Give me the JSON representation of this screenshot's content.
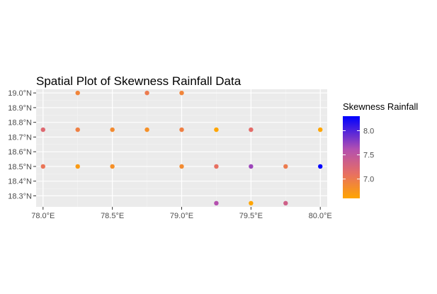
{
  "chart_data": {
    "type": "scatter",
    "title": "Spatial Plot of Skewness Rainfall Data",
    "xlabel": "",
    "ylabel": "",
    "x_ticks": [
      "78.0°E",
      "78.5°E",
      "79.0°E",
      "79.5°E",
      "80.0°E"
    ],
    "x_tick_values": [
      78.0,
      78.5,
      79.0,
      79.5,
      80.0
    ],
    "y_ticks": [
      "18.3°N",
      "18.4°N",
      "18.5°N",
      "18.6°N",
      "18.7°N",
      "18.8°N",
      "18.9°N",
      "19.0°N"
    ],
    "y_tick_values": [
      18.3,
      18.4,
      18.5,
      18.6,
      18.7,
      18.8,
      18.9,
      19.0
    ],
    "xlim": [
      77.95,
      80.05
    ],
    "ylim": [
      18.225,
      19.025
    ],
    "grid": true,
    "legend": {
      "title": "Skewness Rainfall",
      "position": "right",
      "ticks": [
        "8.0",
        "7.5",
        "7.0"
      ],
      "tick_values": [
        8.0,
        7.5,
        7.0
      ],
      "range": [
        6.6,
        8.3
      ],
      "colors": {
        "low": "#ffa500",
        "high": "#0000ff"
      }
    },
    "points": [
      {
        "x": 78.25,
        "y": 19.0,
        "value": 6.9
      },
      {
        "x": 78.75,
        "y": 19.0,
        "value": 7.0
      },
      {
        "x": 79.0,
        "y": 19.0,
        "value": 6.9
      },
      {
        "x": 78.0,
        "y": 18.75,
        "value": 7.2
      },
      {
        "x": 78.25,
        "y": 18.75,
        "value": 6.95
      },
      {
        "x": 78.5,
        "y": 18.75,
        "value": 6.85
      },
      {
        "x": 78.75,
        "y": 18.75,
        "value": 6.8
      },
      {
        "x": 79.0,
        "y": 18.75,
        "value": 6.95
      },
      {
        "x": 79.25,
        "y": 18.75,
        "value": 6.6
      },
      {
        "x": 79.5,
        "y": 18.75,
        "value": 7.15
      },
      {
        "x": 80.0,
        "y": 18.75,
        "value": 6.6
      },
      {
        "x": 78.0,
        "y": 18.5,
        "value": 7.05
      },
      {
        "x": 78.25,
        "y": 18.5,
        "value": 6.7
      },
      {
        "x": 78.5,
        "y": 18.5,
        "value": 6.8
      },
      {
        "x": 79.0,
        "y": 18.5,
        "value": 6.85
      },
      {
        "x": 79.25,
        "y": 18.5,
        "value": 7.1
      },
      {
        "x": 79.5,
        "y": 18.5,
        "value": 7.7
      },
      {
        "x": 79.75,
        "y": 18.5,
        "value": 7.0
      },
      {
        "x": 80.0,
        "y": 18.5,
        "value": 8.3
      },
      {
        "x": 79.25,
        "y": 18.25,
        "value": 7.6
      },
      {
        "x": 79.5,
        "y": 18.25,
        "value": 6.6
      },
      {
        "x": 79.75,
        "y": 18.25,
        "value": 7.35
      }
    ]
  }
}
